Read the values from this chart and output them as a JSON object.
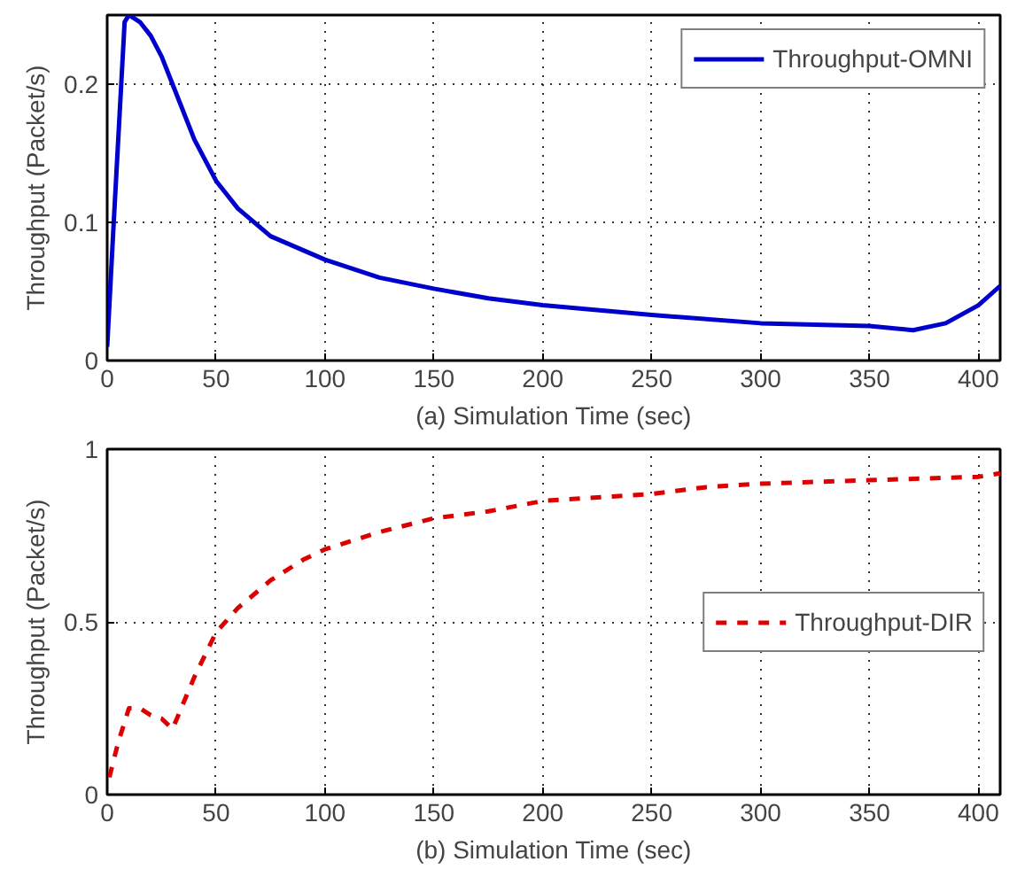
{
  "chart_data": [
    {
      "type": "line",
      "xlabel": "(a) Simulation Time (sec)",
      "ylabel": "Throughput (Packet/s)",
      "xlim": [
        0,
        410
      ],
      "ylim": [
        0,
        0.25
      ],
      "xticks": [
        0,
        50,
        100,
        150,
        200,
        250,
        300,
        350,
        400
      ],
      "yticks": [
        0,
        0.1,
        0.2
      ],
      "grid": true,
      "legend": "top right",
      "line_style": "solid",
      "series": [
        {
          "name": "Throughput-OMNI",
          "color": "#0000cc",
          "x": [
            0,
            3,
            8,
            10,
            15,
            20,
            25,
            30,
            40,
            50,
            60,
            75,
            100,
            125,
            150,
            175,
            200,
            250,
            300,
            350,
            370,
            385,
            400,
            410
          ],
          "values": [
            0.01,
            0.1,
            0.245,
            0.25,
            0.245,
            0.235,
            0.22,
            0.2,
            0.16,
            0.13,
            0.11,
            0.09,
            0.073,
            0.06,
            0.052,
            0.045,
            0.04,
            0.033,
            0.027,
            0.025,
            0.022,
            0.027,
            0.04,
            0.054
          ]
        }
      ]
    },
    {
      "type": "line",
      "xlabel": "(b) Simulation Time (sec)",
      "ylabel": "Throughput (Packet/s)",
      "xlim": [
        0,
        410
      ],
      "ylim": [
        0,
        1
      ],
      "xticks": [
        0,
        50,
        100,
        150,
        200,
        250,
        300,
        350,
        400
      ],
      "yticks": [
        0,
        0.5,
        1
      ],
      "grid": true,
      "legend": "right",
      "line_style": "dashed",
      "series": [
        {
          "name": "Throughput-DIR",
          "color": "#dd0000",
          "x": [
            1,
            5,
            10,
            15,
            20,
            25,
            30,
            40,
            50,
            60,
            75,
            90,
            100,
            125,
            150,
            175,
            200,
            225,
            250,
            275,
            300,
            350,
            400,
            410
          ],
          "values": [
            0.05,
            0.15,
            0.25,
            0.25,
            0.23,
            0.22,
            0.19,
            0.34,
            0.47,
            0.54,
            0.62,
            0.68,
            0.71,
            0.76,
            0.8,
            0.82,
            0.85,
            0.86,
            0.87,
            0.89,
            0.9,
            0.91,
            0.92,
            0.93
          ]
        }
      ]
    }
  ]
}
